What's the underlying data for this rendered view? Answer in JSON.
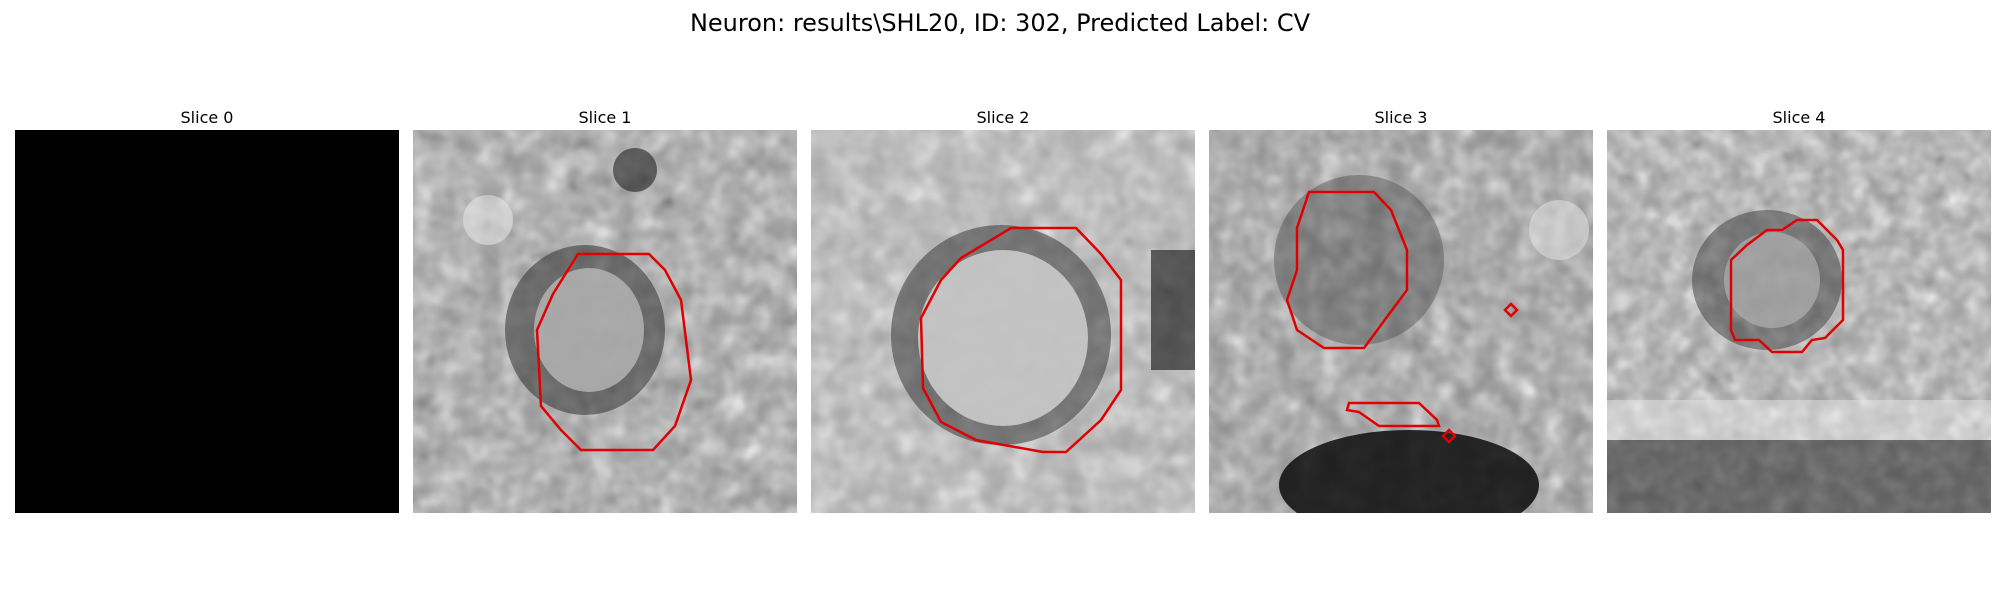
{
  "figure": {
    "title": "Neuron: results\\SHL20, ID: 302, Predicted Label: CV"
  },
  "panels": [
    {
      "title": "Slice 0",
      "content": "black"
    },
    {
      "title": "Slice 1",
      "content": "grayscale-em-with-red-contour"
    },
    {
      "title": "Slice 2",
      "content": "grayscale-em-with-red-contour"
    },
    {
      "title": "Slice 3",
      "content": "grayscale-em-with-red-contours"
    },
    {
      "title": "Slice 4",
      "content": "grayscale-em-with-red-contour"
    }
  ],
  "colors": {
    "contour": "#e00000",
    "background": "#ffffff"
  }
}
